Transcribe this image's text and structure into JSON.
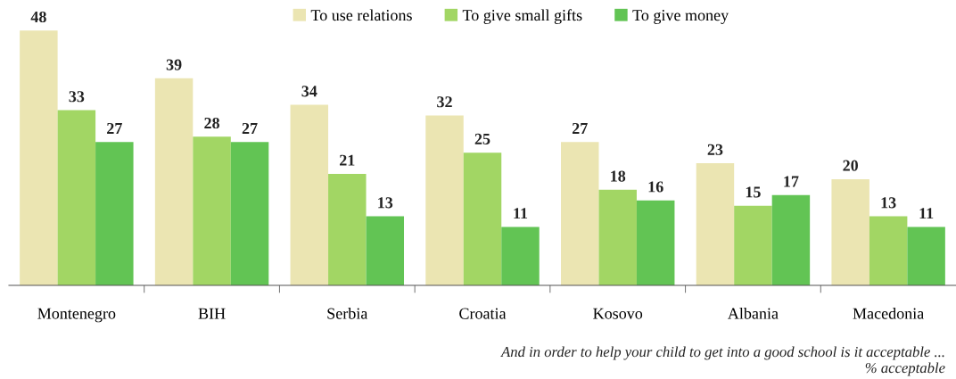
{
  "chart_data": {
    "type": "bar",
    "categories": [
      "Montenegro",
      "BIH",
      "Serbia",
      "Croatia",
      "Kosovo",
      "Albania",
      "Macedonia"
    ],
    "series": [
      {
        "name": "To use relations",
        "color": "#ebe5b2",
        "values": [
          48,
          39,
          34,
          32,
          27,
          23,
          20
        ]
      },
      {
        "name": "To give small gifts",
        "color": "#a2d664",
        "values": [
          33,
          28,
          21,
          25,
          18,
          15,
          13
        ]
      },
      {
        "name": "To give money",
        "color": "#62c454",
        "values": [
          27,
          27,
          13,
          11,
          16,
          17,
          11
        ]
      }
    ],
    "data_labels": true,
    "legend": "top",
    "grid": false,
    "annotations": [
      "And in order to help your child to get into a good school is it acceptable ...",
      "% acceptable"
    ]
  }
}
